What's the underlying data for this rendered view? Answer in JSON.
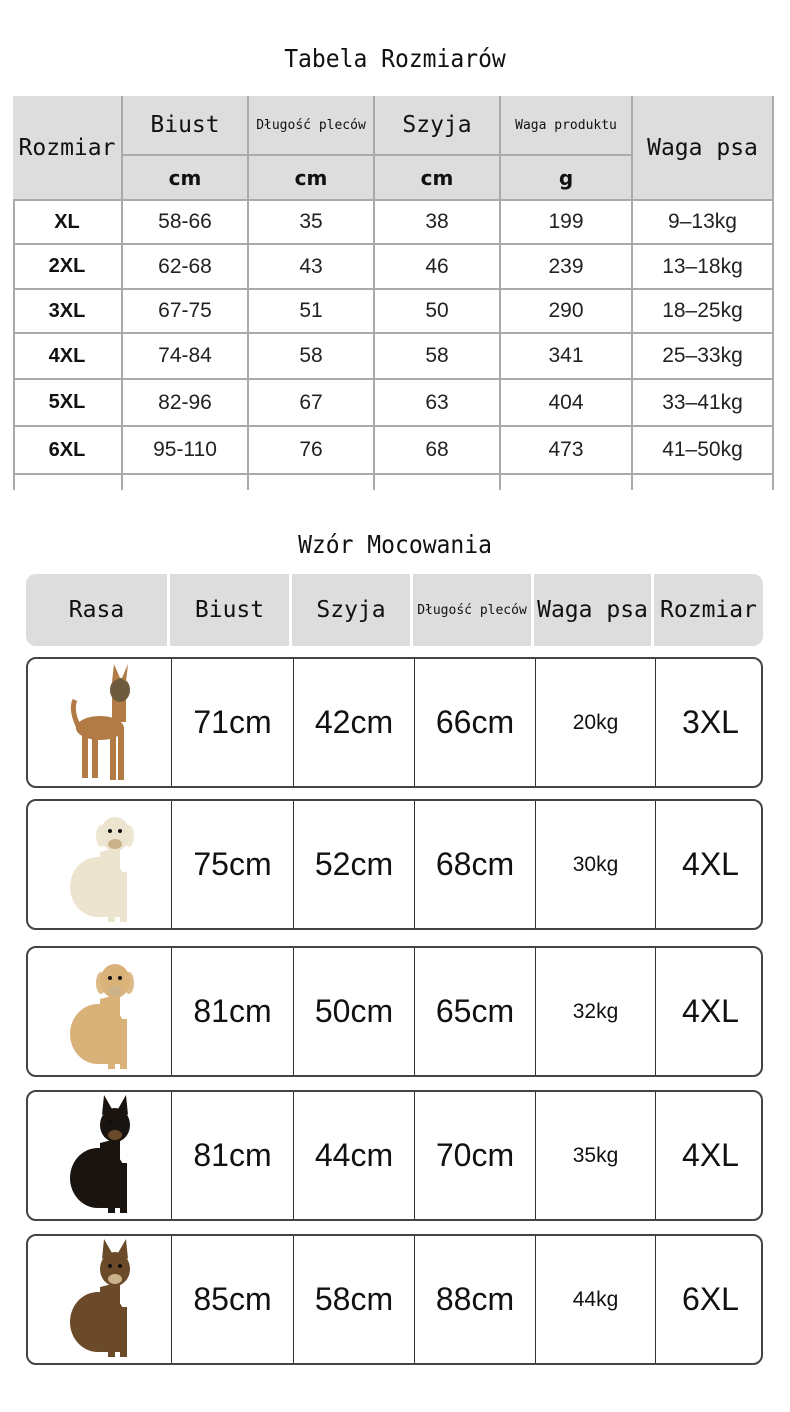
{
  "size_table": {
    "title": "Tabela Rozmiarów",
    "headers": [
      "Rozmiar",
      "Biust",
      "Długość pleców",
      "Szyja",
      "Waga produktu",
      "Waga psa"
    ],
    "units": [
      "cm",
      "cm",
      "cm",
      "g"
    ],
    "rows": [
      [
        "XL",
        "58-66",
        "35",
        "38",
        "199",
        "9–13kg"
      ],
      [
        "2XL",
        "62-68",
        "43",
        "46",
        "239",
        "13–18kg"
      ],
      [
        "3XL",
        "67-75",
        "51",
        "50",
        "290",
        "18–25kg"
      ],
      [
        "4XL",
        "74-84",
        "58",
        "58",
        "341",
        "25–33kg"
      ],
      [
        "5XL",
        "82-96",
        "67",
        "63",
        "404",
        "33–41kg"
      ],
      [
        "6XL",
        "95-110",
        "76",
        "68",
        "473",
        "41–50kg"
      ]
    ]
  },
  "fit_table": {
    "title": "Wzór Mocowania",
    "headers": [
      "Rasa",
      "Biust",
      "Szyja",
      "Długość pleców",
      "Waga psa",
      "Rozmiar"
    ],
    "rows": [
      {
        "dog_icon": "malinois-dog",
        "color": "#b27a45",
        "values": [
          "71cm",
          "42cm",
          "66cm",
          "20kg",
          "3XL"
        ]
      },
      {
        "dog_icon": "labrador-dog",
        "color": "#ece4cf",
        "values": [
          "75cm",
          "52cm",
          "68cm",
          "30kg",
          "4XL"
        ]
      },
      {
        "dog_icon": "golden-retriever-dog",
        "color": "#d9b27a",
        "values": [
          "81cm",
          "50cm",
          "65cm",
          "32kg",
          "4XL"
        ]
      },
      {
        "dog_icon": "doberman-dog",
        "color": "#1a1410",
        "values": [
          "81cm",
          "44cm",
          "70cm",
          "35kg",
          "4XL"
        ]
      },
      {
        "dog_icon": "german-shepherd-dog",
        "color": "#6b4a2a",
        "values": [
          "85cm",
          "58cm",
          "88cm",
          "44kg",
          "6XL"
        ]
      }
    ]
  }
}
